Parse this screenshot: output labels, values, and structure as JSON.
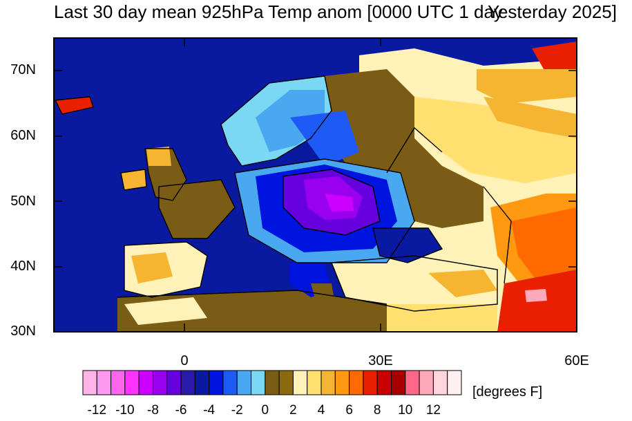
{
  "title": {
    "left": "Last 30 day mean 925hPa Temp anom [0000 UTC 1 day",
    "right": "Yesterday 2025]"
  },
  "map": {
    "lon_range": [
      -20,
      60
    ],
    "lat_range": [
      30,
      75
    ],
    "y_ticks": [
      "70N",
      "60N",
      "50N",
      "40N",
      "30N"
    ],
    "x_ticks": [
      "0",
      "30E",
      "60E"
    ],
    "features": [
      "coastlines",
      "country-borders",
      "filled-anomaly-contours"
    ],
    "anomaly_regions": [
      {
        "name": "central-europe-cold-core",
        "level": "-9 to -6"
      },
      {
        "name": "atlantic-ocean",
        "level": "-6 to -5"
      },
      {
        "name": "scandinavia",
        "level": "-3 to 0"
      },
      {
        "name": "western-russia",
        "level": "1 to 4"
      },
      {
        "name": "caspian-iran",
        "level": "6 to 11"
      },
      {
        "name": "iberia-north-africa",
        "level": "0 to 4"
      }
    ]
  },
  "colorbar": {
    "units": "[degrees F]",
    "labels": [
      "-12",
      "-10",
      "-8",
      "-6",
      "-4",
      "-2",
      "0",
      "2",
      "4",
      "6",
      "8",
      "10",
      "12"
    ],
    "colors": [
      "#ffb3e6",
      "#ff99f0",
      "#ff66ee",
      "#ff33ff",
      "#cc00ff",
      "#9900ee",
      "#6600dd",
      "#2a1aa8",
      "#0a1aa0",
      "#0014e0",
      "#1e5af5",
      "#4aa8f0",
      "#7ad8f5",
      "#7a5c14",
      "#8b6a10",
      "#fff2b8",
      "#ffe070",
      "#f5b530",
      "#ff9a10",
      "#ff6a00",
      "#e82000",
      "#c80000",
      "#a80000",
      "#ff6688",
      "#ffaabb",
      "#ffd6dd",
      "#fff0f0"
    ]
  }
}
